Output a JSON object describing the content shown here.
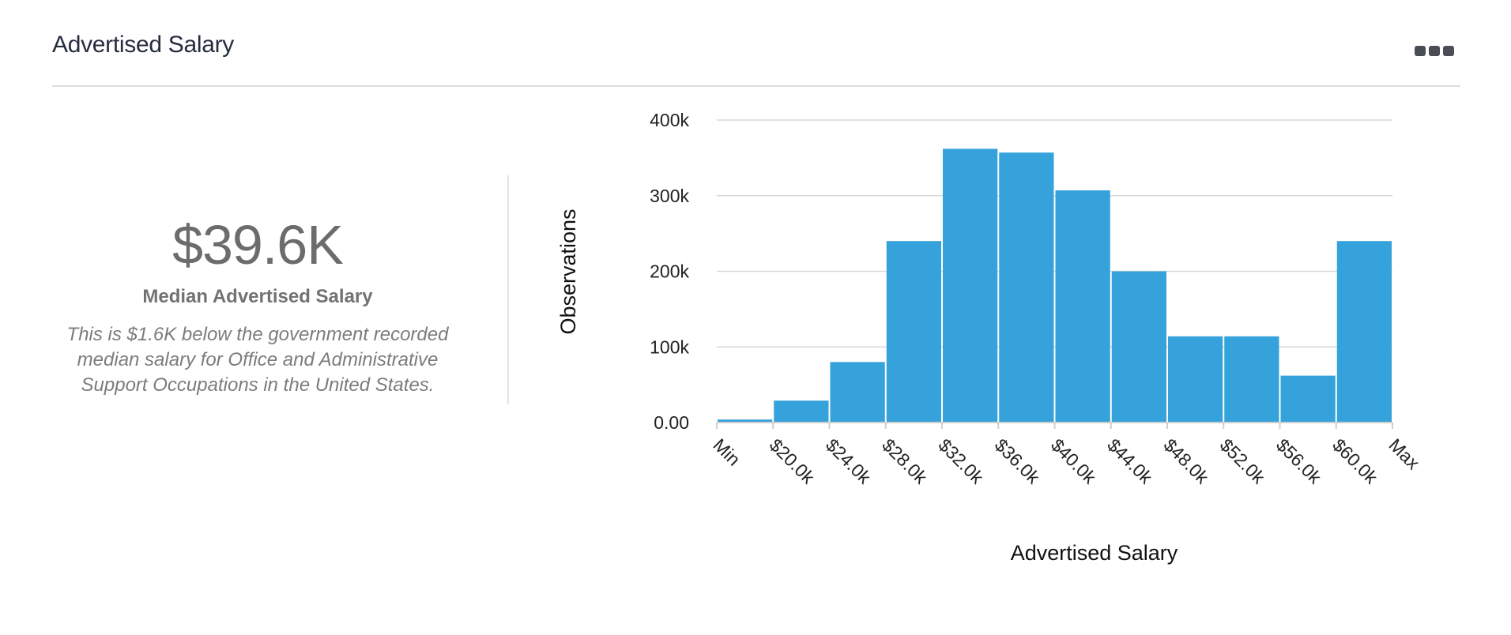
{
  "header": {
    "title": "Advertised Salary"
  },
  "summary": {
    "value": "$39.6K",
    "label": "Median Advertised Salary",
    "note": "This is $1.6K below the government recorded median salary for Office and Administrative Support Occupations in the United States."
  },
  "colors": {
    "bar": "#35a2db",
    "grid": "#d9d9d9",
    "axis": "#cfcfcf"
  },
  "chart_data": {
    "type": "bar",
    "title": "",
    "xlabel": "Advertised Salary",
    "ylabel": "Observations",
    "ylim": [
      0,
      400000
    ],
    "yticks": [
      0,
      100000,
      200000,
      300000,
      400000
    ],
    "ytick_labels": [
      "0.00",
      "100k",
      "200k",
      "300k",
      "400k"
    ],
    "bin_edges": [
      "Min",
      "$20.0k",
      "$24.0k",
      "$28.0k",
      "$32.0k",
      "$36.0k",
      "$40.0k",
      "$44.0k",
      "$48.0k",
      "$52.0k",
      "$56.0k",
      "$60.0k",
      "Max"
    ],
    "values": [
      4000,
      29000,
      80000,
      240000,
      362000,
      357000,
      307000,
      200000,
      114000,
      114000,
      62000,
      240000
    ],
    "grid": true,
    "legend": "none"
  }
}
